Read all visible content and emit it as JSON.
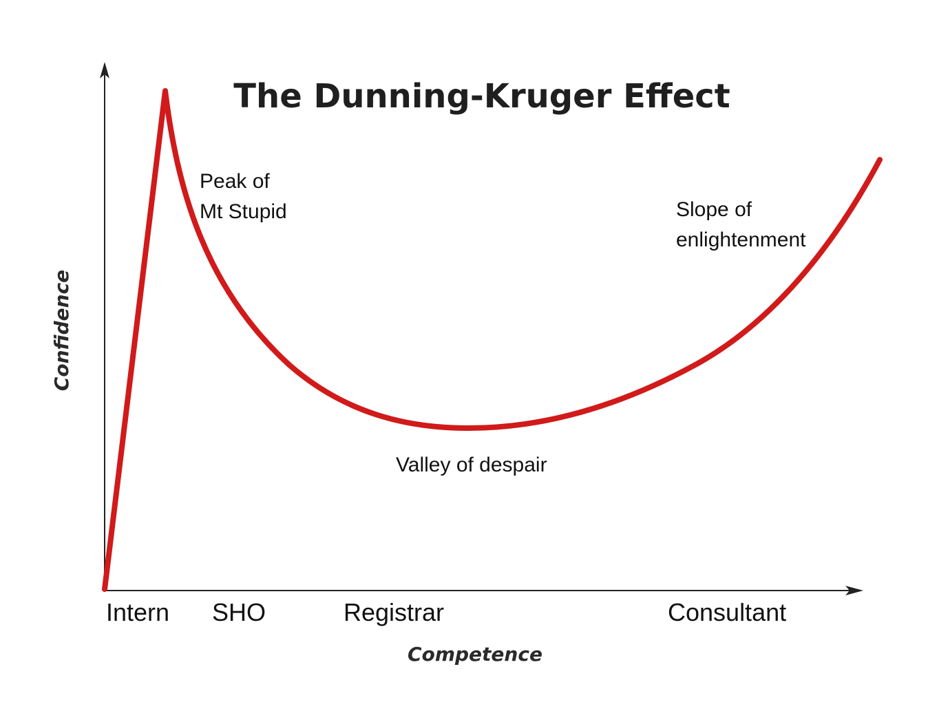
{
  "chart_data": {
    "type": "line",
    "title": "The Dunning-Kruger Effect",
    "xlabel": "Competence",
    "ylabel": "Confidence",
    "x_tick_labels": [
      "Intern",
      "SHO",
      "Registrar",
      "Consultant"
    ],
    "annotations": [
      {
        "lines": [
          "Peak of",
          "Mt Stupid"
        ]
      },
      {
        "lines": [
          "Valley of despair"
        ]
      },
      {
        "lines": [
          "Slope of",
          "enlightenment"
        ]
      }
    ],
    "curve_color": "#d11a1a",
    "axis_color": "#222222",
    "grid": false,
    "legend": "none"
  }
}
